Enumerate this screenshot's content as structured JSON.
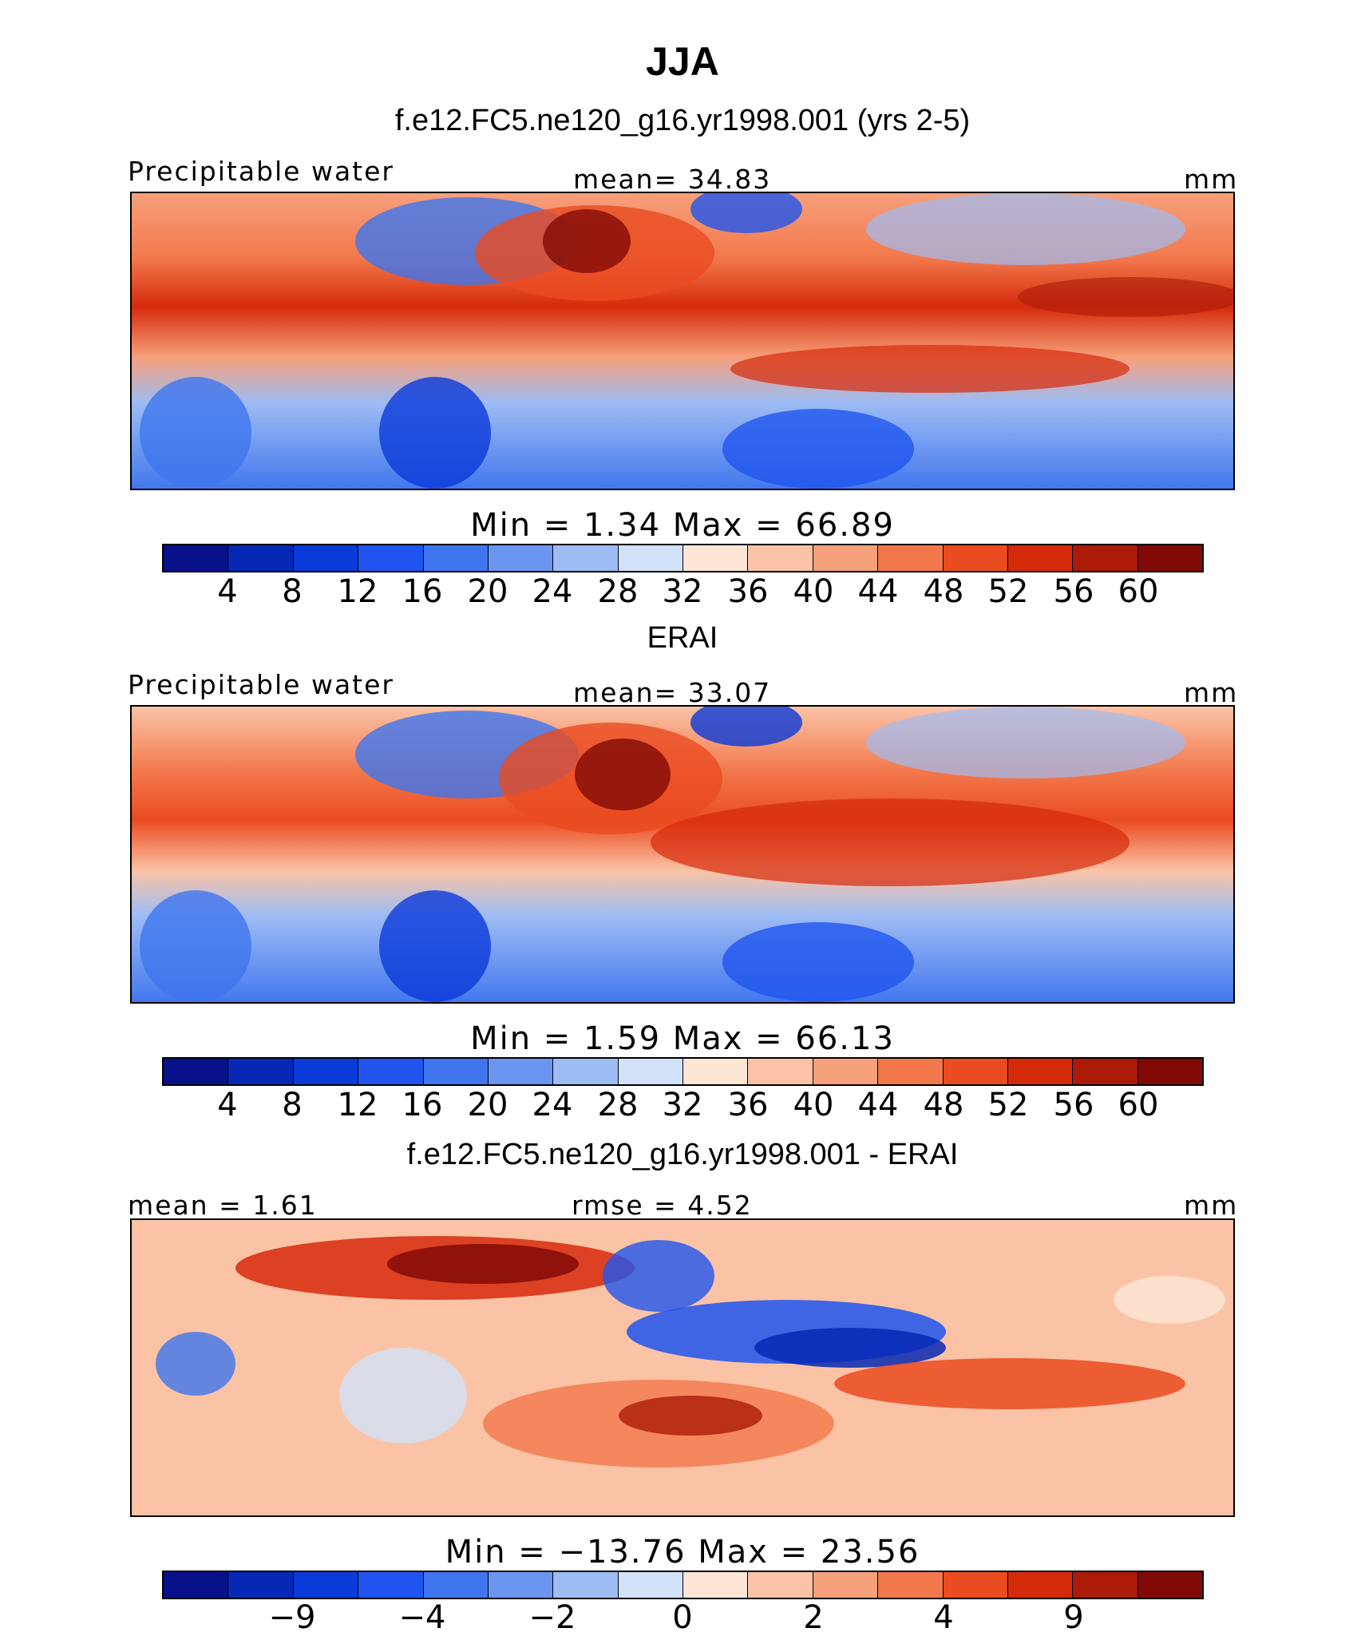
{
  "title": "JJA",
  "panels": [
    {
      "subtitle": "f.e12.FC5.ne120_g16.yr1998.001 (yrs 2-5)",
      "left_label": "Precipitable water",
      "center_label": "mean=   34.83",
      "right_label": "mm",
      "minmax": "Min  =     1.34  Max  =    66.89",
      "map_description": "model precipitable water field"
    },
    {
      "subtitle": "ERAI",
      "left_label": "Precipitable water",
      "center_label": "mean=   33.07",
      "right_label": "mm",
      "minmax": "Min  =     1.59  Max  =    66.13",
      "map_description": "reanalysis precipitable water field"
    },
    {
      "subtitle": "f.e12.FC5.ne120_g16.yr1998.001 - ERAI",
      "left_label": "mean  =    1.61",
      "center_label": "rmse  =    4.52",
      "right_label": "mm",
      "minmax": "Min  = −13.76  Max  =    23.56",
      "map_description": "difference field"
    }
  ],
  "colorbar_abs": {
    "colors": [
      "#08108a",
      "#0628b4",
      "#0a3ad8",
      "#1f55ee",
      "#3f75ee",
      "#6b96f0",
      "#9ebcf4",
      "#d2e2f8",
      "#fde6d6",
      "#fbc3a6",
      "#f7a07c",
      "#f2784c",
      "#ea4b20",
      "#d52a0a",
      "#ac1a08",
      "#820a06"
    ],
    "tick_labels": [
      "4",
      "8",
      "12",
      "16",
      "20",
      "24",
      "28",
      "32",
      "36",
      "40",
      "44",
      "48",
      "52",
      "56",
      "60"
    ]
  },
  "colorbar_diff": {
    "colors": [
      "#08108a",
      "#0628b4",
      "#0a3ad8",
      "#1f55ee",
      "#3f75ee",
      "#6b96f0",
      "#9ebcf4",
      "#d2e2f8",
      "#fde6d6",
      "#fbc3a6",
      "#f7a07c",
      "#f2784c",
      "#ea4b20",
      "#d52a0a",
      "#ac1a08",
      "#820a06"
    ],
    "tick_labels": [
      "−9",
      "−4",
      "−2",
      "0",
      "2",
      "4",
      "9"
    ]
  }
}
